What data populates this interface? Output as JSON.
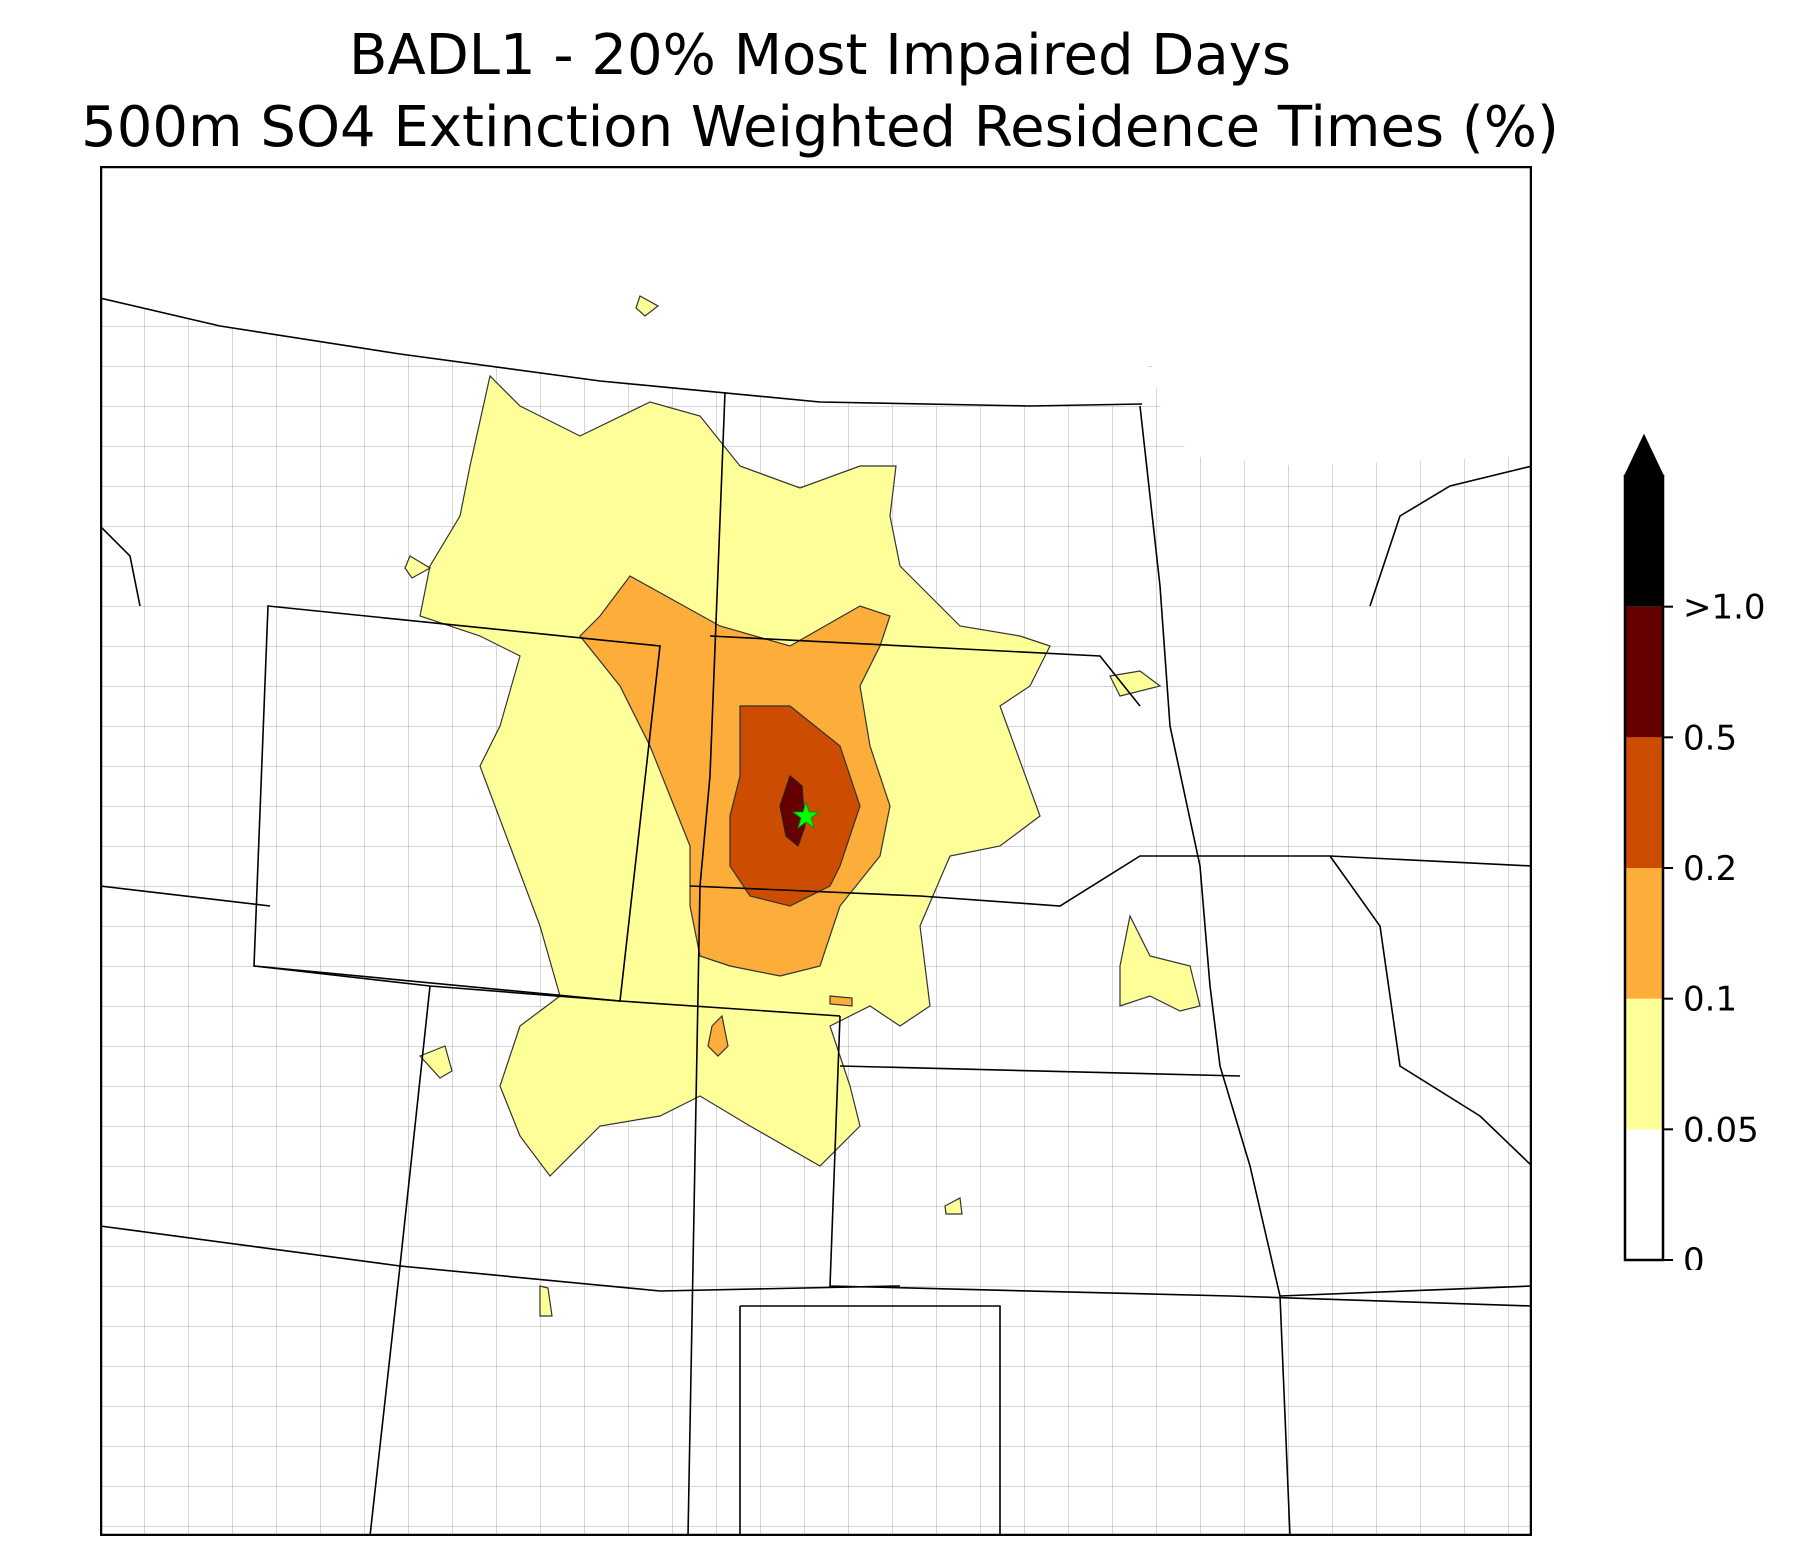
{
  "title": {
    "line1": "BADL1 - 20% Most Impaired Days",
    "line2": "500m SO4 Extinction Weighted Residence Times (%)"
  },
  "legend": {
    "levels": [
      {
        "label": "0",
        "value": 0,
        "color": "#ffffff"
      },
      {
        "label": "0.05",
        "value": 0.05,
        "color": "#ffff99"
      },
      {
        "label": "0.1",
        "value": 0.1,
        "color": "#fdae3a"
      },
      {
        "label": "0.2",
        "value": 0.2,
        "color": "#cc4c02"
      },
      {
        "label": "0.5",
        "value": 0.5,
        "color": "#660000"
      },
      {
        "label": ">1.0",
        "value": 1.0,
        "color": "#000000"
      }
    ],
    "extend": "max"
  },
  "map": {
    "site_marker": "green-star-icon",
    "site_color": "#00ff00",
    "state_line_color": "#000000",
    "county_line_color": "#aaaaaa"
  }
}
